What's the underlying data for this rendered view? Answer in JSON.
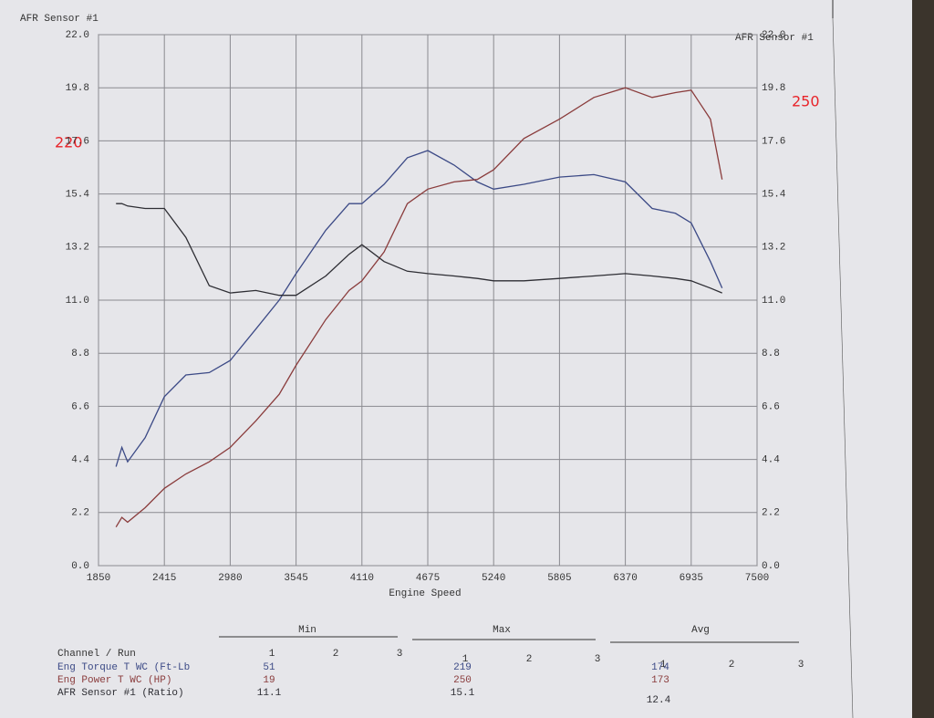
{
  "chart_data": {
    "type": "line",
    "ylabel": "AFR Sensor #1",
    "y2label": "AFR Sensor #1",
    "xlabel": "Engine Speed",
    "annotations": [
      "220",
      "250"
    ],
    "x": [
      2000,
      2050,
      2100,
      2250,
      2415,
      2600,
      2800,
      2980,
      3200,
      3400,
      3545,
      3800,
      4000,
      4110,
      4300,
      4500,
      4675,
      4900,
      5100,
      5240,
      5500,
      5805,
      6100,
      6370,
      6600,
      6800,
      6935,
      7100,
      7200
    ],
    "xlim": [
      1850,
      7500
    ],
    "xticks": [
      1850,
      2415,
      2980,
      3545,
      4110,
      4675,
      5240,
      5805,
      6370,
      6935,
      7500
    ],
    "ylim": [
      0,
      22
    ],
    "yticks": [
      {
        "value": 0,
        "label": "0.0"
      },
      {
        "value": 2.2,
        "label": "2.2"
      },
      {
        "value": 4.4,
        "label": "4.4"
      },
      {
        "value": 6.6,
        "label": "6.6"
      },
      {
        "value": 8.8,
        "label": "8.8"
      },
      {
        "value": 11,
        "label": "11.0"
      },
      {
        "value": 13.2,
        "label": "13.2"
      },
      {
        "value": 15.4,
        "label": "15.4"
      },
      {
        "value": 17.6,
        "label": "17.6"
      },
      {
        "value": 19.8,
        "label": "19.8"
      },
      {
        "value": 22,
        "label": "22.0"
      }
    ],
    "grid": true,
    "series": [
      {
        "name": "Eng Torque T WC (Ft-Lb",
        "color": "#3c4a86",
        "values": [
          4.1,
          4.9,
          4.3,
          5.3,
          7.0,
          7.9,
          8.0,
          8.5,
          9.8,
          11.0,
          12.1,
          13.9,
          15.0,
          15.0,
          15.8,
          16.9,
          17.2,
          16.6,
          15.9,
          15.6,
          15.8,
          16.1,
          16.2,
          15.9,
          14.8,
          14.6,
          14.2,
          12.6,
          11.5
        ]
      },
      {
        "name": "Eng Power T WC (HP)",
        "color": "#8a3c3c",
        "values": [
          1.6,
          2.0,
          1.8,
          2.4,
          3.2,
          3.8,
          4.3,
          4.9,
          6.0,
          7.1,
          8.3,
          10.2,
          11.4,
          11.8,
          13.0,
          15.0,
          15.6,
          15.9,
          16.0,
          16.4,
          17.7,
          18.5,
          19.4,
          19.8,
          19.4,
          19.6,
          19.7,
          18.5,
          16.0
        ]
      },
      {
        "name": "AFR Sensor #1 (Ratio)",
        "color": "#2e2e34",
        "values": [
          15.0,
          15.0,
          14.9,
          14.8,
          14.8,
          13.6,
          11.6,
          11.3,
          11.4,
          11.2,
          11.2,
          12.0,
          12.9,
          13.3,
          12.6,
          12.2,
          12.1,
          12.0,
          11.9,
          11.8,
          11.8,
          11.9,
          12.0,
          12.1,
          12.0,
          11.9,
          11.8,
          11.5,
          11.3
        ]
      }
    ]
  },
  "table": {
    "headers": [
      "Min",
      "Max",
      "Avg"
    ],
    "channel_header": "Channel / Run",
    "runs": [
      "1",
      "2",
      "3"
    ],
    "rows": [
      [
        51,
        219,
        174
      ],
      [
        19,
        250,
        173
      ],
      [
        11.1,
        15.1,
        12.4
      ]
    ]
  }
}
